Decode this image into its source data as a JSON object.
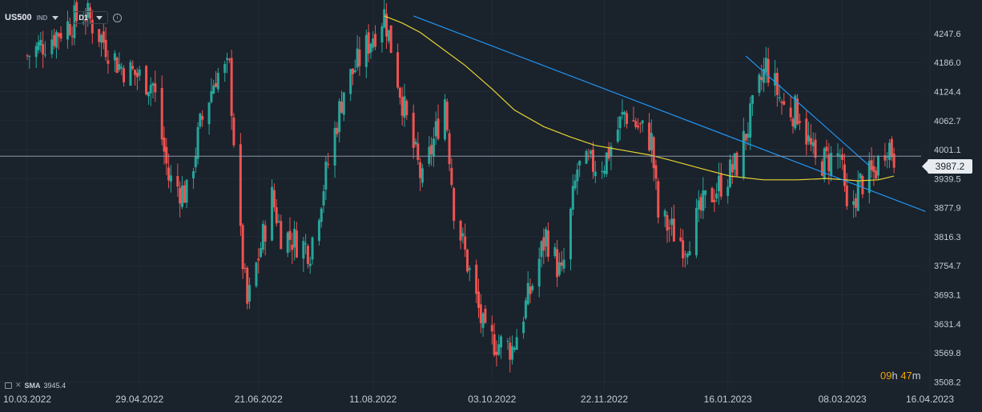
{
  "header": {
    "symbol": "US500",
    "exchange": "IND",
    "timeframe": "D1",
    "info_icon": "info-icon"
  },
  "indicator": {
    "label": "SMA",
    "value": "3945.4"
  },
  "countdown": {
    "hours": "09",
    "hours_unit": "h",
    "minutes": "47",
    "minutes_unit": "m"
  },
  "current_price": "3987.2",
  "colors": {
    "background": "#1a222c",
    "up": "#26a69a",
    "down": "#ef5350",
    "sma": "#e6d431",
    "trend": "#2196f3",
    "grid": "#222b36"
  },
  "chart_data": {
    "type": "candlestick",
    "title": "",
    "xlabel": "",
    "ylabel": "",
    "ylim": [
      3490,
      4290
    ],
    "y_ticks": [
      "4247.6",
      "4186.0",
      "4124.4",
      "4062.7",
      "4001.1",
      "3939.5",
      "3877.9",
      "3816.3",
      "3754.7",
      "3693.1",
      "3631.4",
      "3569.8",
      "3508.2"
    ],
    "x_ticks": [
      "10.03.2022",
      "29.04.2022",
      "21.06.2022",
      "11.08.2022",
      "03.10.2022",
      "22.11.2022",
      "16.01.2023",
      "08.03.2023",
      "16.04.2023"
    ],
    "x_range": [
      "2022-03-10",
      "2023-04-16"
    ],
    "last_price": 3987.2,
    "trend_lines": [
      {
        "from": [
          "2022-08-29",
          4285
        ],
        "to": [
          "2023-04-14",
          3870
        ]
      },
      {
        "from": [
          "2023-01-24",
          4200
        ],
        "to": [
          "2023-03-20",
          3967
        ]
      }
    ],
    "close_path": [
      [
        "2022-03-10",
        4200
      ],
      [
        "2022-03-29",
        4270
      ],
      [
        "2022-04-05",
        4290
      ],
      [
        "2022-04-20",
        4180
      ],
      [
        "2022-05-05",
        4140
      ],
      [
        "2022-05-12",
        3940
      ],
      [
        "2022-05-20",
        3905
      ],
      [
        "2022-05-26",
        4050
      ],
      [
        "2022-06-02",
        4160
      ],
      [
        "2022-06-08",
        4170
      ],
      [
        "2022-06-13",
        3810
      ],
      [
        "2022-06-16",
        3670
      ],
      [
        "2022-06-27",
        3900
      ],
      [
        "2022-07-01",
        3825
      ],
      [
        "2022-07-14",
        3790
      ],
      [
        "2022-07-29",
        4130
      ],
      [
        "2022-08-16",
        4290
      ],
      [
        "2022-08-26",
        4060
      ],
      [
        "2022-09-02",
        3930
      ],
      [
        "2022-09-12",
        4110
      ],
      [
        "2022-09-16",
        3880
      ],
      [
        "2022-09-30",
        3600
      ],
      [
        "2022-10-12",
        3580
      ],
      [
        "2022-10-20",
        3700
      ],
      [
        "2022-10-27",
        3820
      ],
      [
        "2022-11-03",
        3730
      ],
      [
        "2022-11-10",
        3960
      ],
      [
        "2022-11-22",
        3975
      ],
      [
        "2022-12-01",
        4080
      ],
      [
        "2022-12-13",
        4020
      ],
      [
        "2022-12-16",
        3860
      ],
      [
        "2022-12-28",
        3800
      ],
      [
        "2023-01-06",
        3890
      ],
      [
        "2023-01-20",
        3970
      ],
      [
        "2023-02-02",
        4180
      ],
      [
        "2023-02-10",
        4090
      ],
      [
        "2023-02-17",
        4080
      ],
      [
        "2023-02-24",
        3970
      ],
      [
        "2023-03-07",
        3990
      ],
      [
        "2023-03-10",
        3860
      ],
      [
        "2023-03-16",
        3930
      ],
      [
        "2023-03-22",
        3950
      ],
      [
        "2023-03-28",
        4020
      ],
      [
        "2023-03-31",
        3987
      ]
    ],
    "series": [
      {
        "name": "SMA",
        "values": [
          [
            "2022-08-16",
            4285
          ],
          [
            "2022-08-24",
            4270
          ],
          [
            "2022-09-01",
            4250
          ],
          [
            "2022-09-09",
            4222
          ],
          [
            "2022-09-21",
            4180
          ],
          [
            "2022-10-03",
            4130
          ],
          [
            "2022-10-13",
            4085
          ],
          [
            "2022-10-26",
            4050
          ],
          [
            "2022-11-07",
            4028
          ],
          [
            "2022-11-18",
            4010
          ],
          [
            "2022-11-30",
            4000
          ],
          [
            "2022-12-12",
            3990
          ],
          [
            "2022-12-22",
            3978
          ],
          [
            "2023-01-05",
            3960
          ],
          [
            "2023-01-17",
            3945
          ],
          [
            "2023-02-01",
            3937
          ],
          [
            "2023-02-16",
            3937
          ],
          [
            "2023-03-01",
            3940
          ],
          [
            "2023-03-15",
            3935
          ],
          [
            "2023-03-24",
            3937
          ],
          [
            "2023-03-31",
            3945
          ]
        ]
      }
    ]
  }
}
